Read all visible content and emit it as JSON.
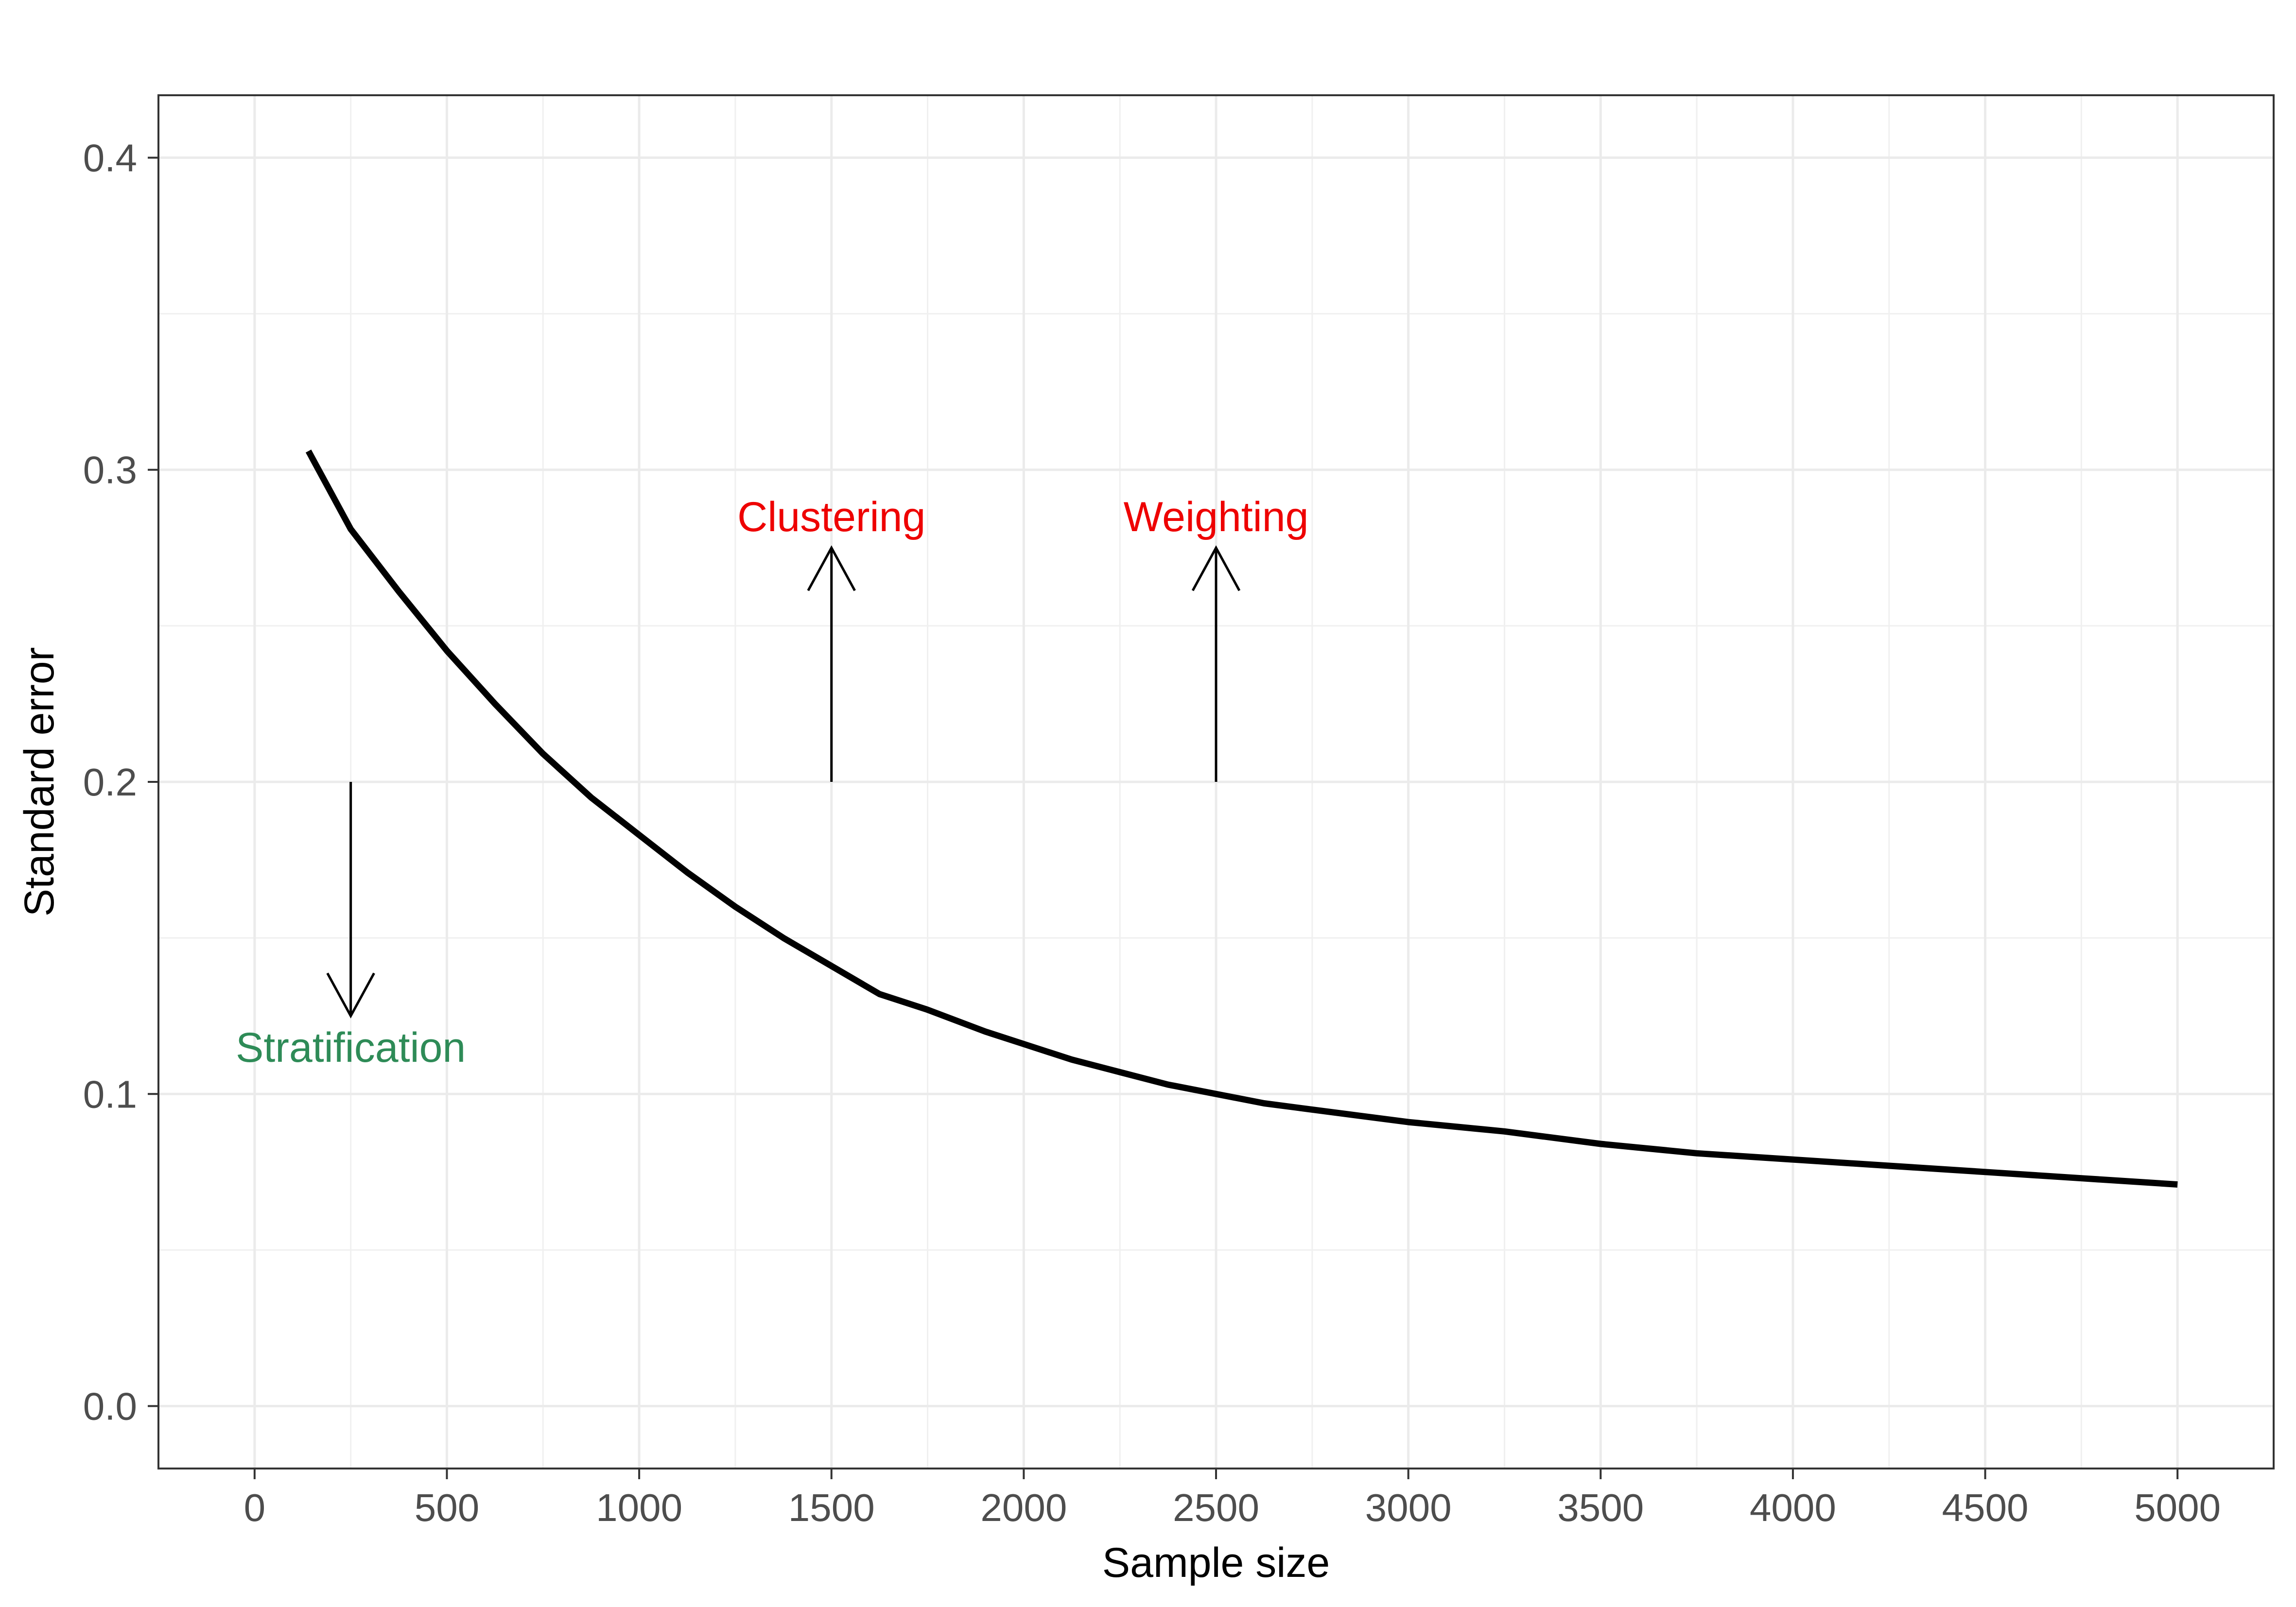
{
  "chart_data": {
    "type": "line",
    "xlabel": "Sample size",
    "ylabel": "Standard error",
    "xlim": [
      -250,
      5250
    ],
    "ylim": [
      -0.02,
      0.42
    ],
    "x_ticks": [
      0,
      500,
      1000,
      1500,
      2000,
      2500,
      3000,
      3500,
      4000,
      4500,
      5000
    ],
    "y_ticks": [
      0.0,
      0.1,
      0.2,
      0.3,
      0.4
    ],
    "x_tick_labels": [
      "0",
      "500",
      "1000",
      "1500",
      "2000",
      "2500",
      "3000",
      "3500",
      "4000",
      "4500",
      "5000"
    ],
    "y_tick_labels": [
      "0.0",
      "0.1",
      "0.2",
      "0.3",
      "0.4"
    ],
    "grid": true,
    "series": [
      {
        "color": "#000000",
        "x": [
          140,
          250,
          375,
          500,
          625,
          750,
          875,
          1000,
          1125,
          1250,
          1375,
          1500,
          1625,
          1750,
          1900,
          2000,
          2125,
          2250,
          2375,
          2500,
          2625,
          2750,
          3000,
          3250,
          3500,
          3750,
          4000,
          4250,
          4500,
          4750,
          5000
        ],
        "y": [
          0.306,
          0.281,
          0.261,
          0.242,
          0.225,
          0.209,
          0.195,
          0.183,
          0.171,
          0.16,
          0.15,
          0.141,
          0.132,
          0.127,
          0.12,
          0.116,
          0.111,
          0.107,
          0.103,
          0.1,
          0.097,
          0.095,
          0.091,
          0.088,
          0.084,
          0.081,
          0.079,
          0.077,
          0.075,
          0.073,
          0.071
        ]
      }
    ],
    "annotations": [
      {
        "label": "Stratification",
        "color": "#2e8b57",
        "x": 250,
        "arrow_from": 0.2,
        "arrow_to": 0.125,
        "direction": "down",
        "text_y": 0.115
      },
      {
        "label": "Clustering",
        "color": "#ee0000",
        "x": 1500,
        "arrow_from": 0.2,
        "arrow_to": 0.275,
        "direction": "up",
        "text_y": 0.285
      },
      {
        "label": "Weighting",
        "color": "#ee0000",
        "x": 2500,
        "arrow_from": 0.2,
        "arrow_to": 0.275,
        "direction": "up",
        "text_y": 0.285
      }
    ]
  }
}
